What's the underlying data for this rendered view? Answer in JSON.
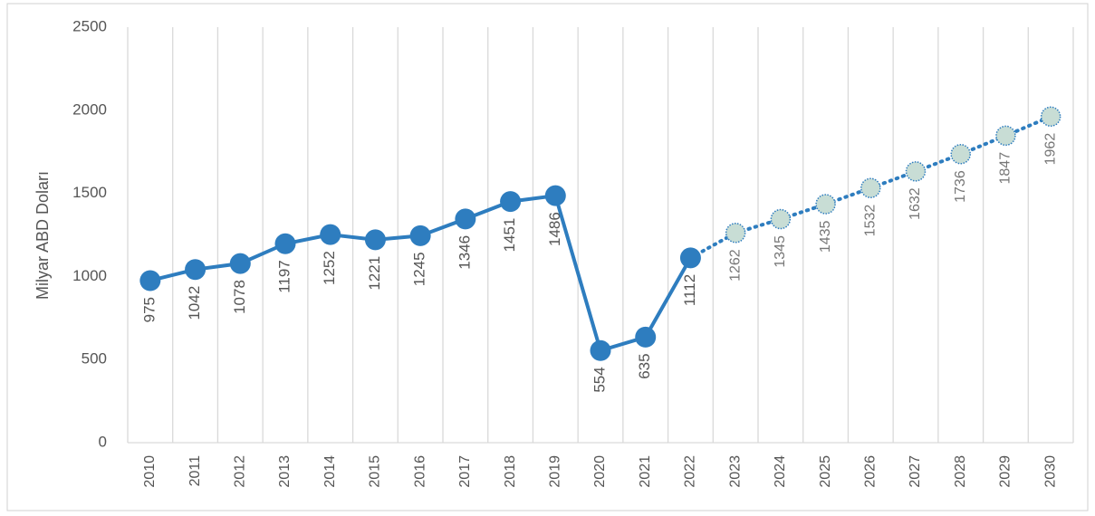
{
  "chart_data": {
    "type": "line",
    "y_label": "Milyar ABD Doları",
    "categories": [
      "2010",
      "2011",
      "2012",
      "2013",
      "2014",
      "2015",
      "2016",
      "2017",
      "2018",
      "2019",
      "2020",
      "2021",
      "2022",
      "2023",
      "2024",
      "2025",
      "2026",
      "2027",
      "2028",
      "2029",
      "2030"
    ],
    "series": [
      {
        "color": "#2e7dbf",
        "style": "solid",
        "values": [
          975,
          1042,
          1078,
          1197,
          1252,
          1221,
          1245,
          1346,
          1451,
          1486,
          554,
          635,
          1112,
          null,
          null,
          null,
          null,
          null,
          null,
          null,
          null
        ]
      },
      {
        "color": "#2e7dbf",
        "marker_fill": "#c8ddd5",
        "style": "dotted",
        "values": [
          null,
          null,
          null,
          null,
          null,
          null,
          null,
          null,
          null,
          null,
          null,
          null,
          null,
          1262,
          1345,
          1435,
          1532,
          1632,
          1736,
          1847,
          1962
        ]
      }
    ],
    "ylim": [
      0,
      2500
    ],
    "yticks": [
      0,
      500,
      1000,
      1500,
      2000,
      2500
    ]
  }
}
